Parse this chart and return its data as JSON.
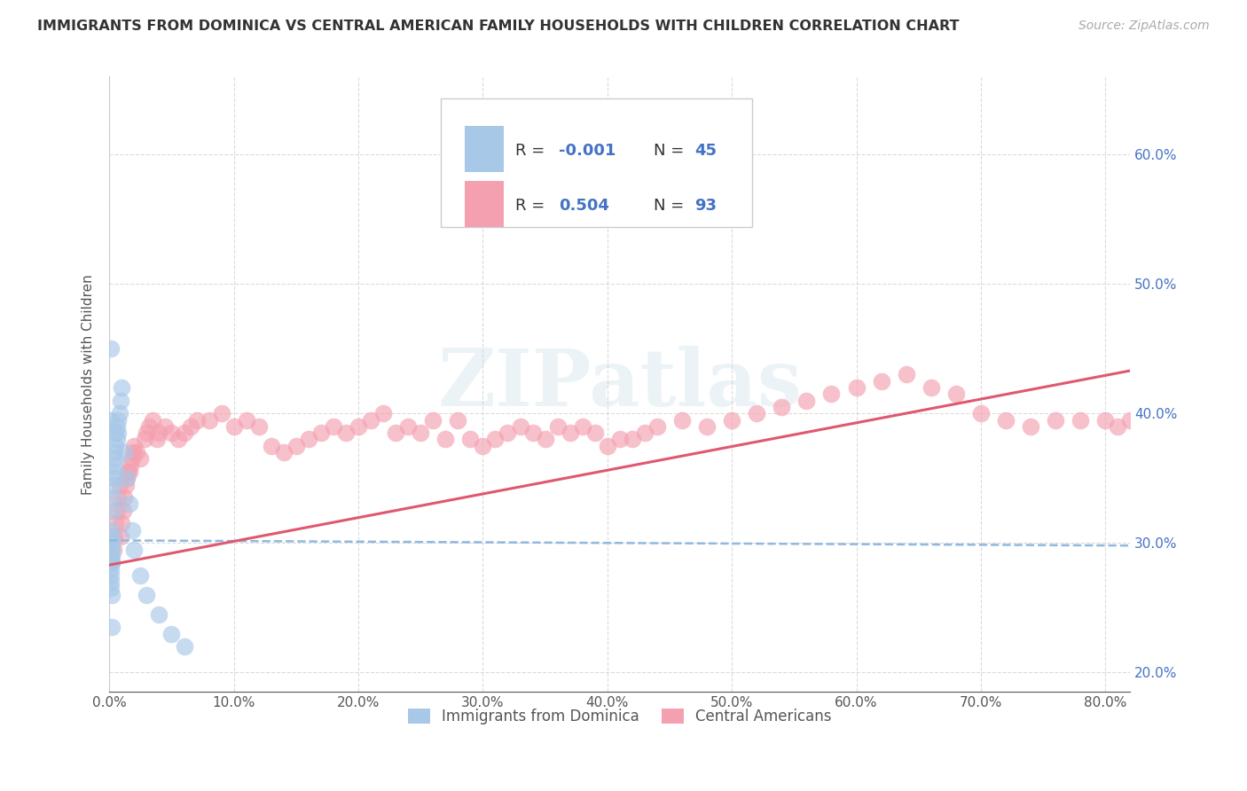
{
  "title": "IMMIGRANTS FROM DOMINICA VS CENTRAL AMERICAN FAMILY HOUSEHOLDS WITH CHILDREN CORRELATION CHART",
  "source": "Source: ZipAtlas.com",
  "ylabel": "Family Households with Children",
  "xlim": [
    0.0,
    0.82
  ],
  "ylim": [
    0.185,
    0.66
  ],
  "yticks": [
    0.2,
    0.3,
    0.4,
    0.5,
    0.6
  ],
  "xticks": [
    0.0,
    0.1,
    0.2,
    0.3,
    0.4,
    0.5,
    0.6,
    0.7,
    0.8
  ],
  "dominica_color": "#a8c8e8",
  "central_color": "#f4a0b0",
  "dominica_line_color": "#90b8e0",
  "central_line_color": "#e05870",
  "grid_color": "#cccccc",
  "background_color": "#ffffff",
  "legend_label1": "Immigrants from Dominica",
  "legend_label2": "Central Americans",
  "watermark": "ZIPatlas",
  "dominica_x": [
    0.001,
    0.001,
    0.001,
    0.001,
    0.001,
    0.001,
    0.001,
    0.001,
    0.002,
    0.002,
    0.002,
    0.002,
    0.002,
    0.002,
    0.003,
    0.003,
    0.003,
    0.003,
    0.004,
    0.004,
    0.004,
    0.005,
    0.005,
    0.005,
    0.006,
    0.006,
    0.007,
    0.007,
    0.008,
    0.009,
    0.01,
    0.012,
    0.014,
    0.016,
    0.018,
    0.02,
    0.025,
    0.03,
    0.04,
    0.05,
    0.06,
    0.001,
    0.001,
    0.002,
    0.002
  ],
  "dominica_y": [
    0.3,
    0.295,
    0.29,
    0.285,
    0.28,
    0.275,
    0.27,
    0.265,
    0.31,
    0.305,
    0.3,
    0.295,
    0.29,
    0.285,
    0.355,
    0.345,
    0.335,
    0.325,
    0.37,
    0.36,
    0.35,
    0.385,
    0.375,
    0.365,
    0.39,
    0.38,
    0.395,
    0.385,
    0.4,
    0.41,
    0.42,
    0.37,
    0.35,
    0.33,
    0.31,
    0.295,
    0.275,
    0.26,
    0.245,
    0.23,
    0.22,
    0.45,
    0.395,
    0.26,
    0.235
  ],
  "central_x": [
    0.002,
    0.003,
    0.004,
    0.005,
    0.006,
    0.007,
    0.008,
    0.009,
    0.01,
    0.011,
    0.012,
    0.013,
    0.014,
    0.015,
    0.016,
    0.017,
    0.018,
    0.019,
    0.02,
    0.022,
    0.025,
    0.028,
    0.03,
    0.032,
    0.035,
    0.038,
    0.04,
    0.045,
    0.05,
    0.055,
    0.06,
    0.065,
    0.07,
    0.08,
    0.09,
    0.1,
    0.11,
    0.12,
    0.13,
    0.14,
    0.15,
    0.16,
    0.17,
    0.18,
    0.19,
    0.2,
    0.21,
    0.22,
    0.23,
    0.24,
    0.25,
    0.26,
    0.27,
    0.28,
    0.29,
    0.3,
    0.31,
    0.32,
    0.33,
    0.34,
    0.35,
    0.36,
    0.37,
    0.38,
    0.39,
    0.4,
    0.41,
    0.42,
    0.43,
    0.44,
    0.46,
    0.48,
    0.5,
    0.52,
    0.54,
    0.56,
    0.58,
    0.6,
    0.62,
    0.64,
    0.66,
    0.68,
    0.7,
    0.72,
    0.74,
    0.76,
    0.78,
    0.8,
    0.81,
    0.82,
    0.83
  ],
  "central_y": [
    0.285,
    0.295,
    0.305,
    0.315,
    0.325,
    0.335,
    0.345,
    0.305,
    0.315,
    0.325,
    0.335,
    0.345,
    0.35,
    0.355,
    0.355,
    0.36,
    0.365,
    0.37,
    0.375,
    0.37,
    0.365,
    0.38,
    0.385,
    0.39,
    0.395,
    0.38,
    0.385,
    0.39,
    0.385,
    0.38,
    0.385,
    0.39,
    0.395,
    0.395,
    0.4,
    0.39,
    0.395,
    0.39,
    0.375,
    0.37,
    0.375,
    0.38,
    0.385,
    0.39,
    0.385,
    0.39,
    0.395,
    0.4,
    0.385,
    0.39,
    0.385,
    0.395,
    0.38,
    0.395,
    0.38,
    0.375,
    0.38,
    0.385,
    0.39,
    0.385,
    0.38,
    0.39,
    0.385,
    0.39,
    0.385,
    0.375,
    0.38,
    0.38,
    0.385,
    0.39,
    0.395,
    0.39,
    0.395,
    0.4,
    0.405,
    0.41,
    0.415,
    0.42,
    0.425,
    0.43,
    0.42,
    0.415,
    0.4,
    0.395,
    0.39,
    0.395,
    0.395,
    0.395,
    0.39,
    0.395,
    0.39
  ],
  "dom_trend_x": [
    0.0,
    0.82
  ],
  "dom_trend_y": [
    0.302,
    0.298
  ],
  "cen_trend_x": [
    0.0,
    0.82
  ],
  "cen_trend_y": [
    0.283,
    0.433
  ]
}
